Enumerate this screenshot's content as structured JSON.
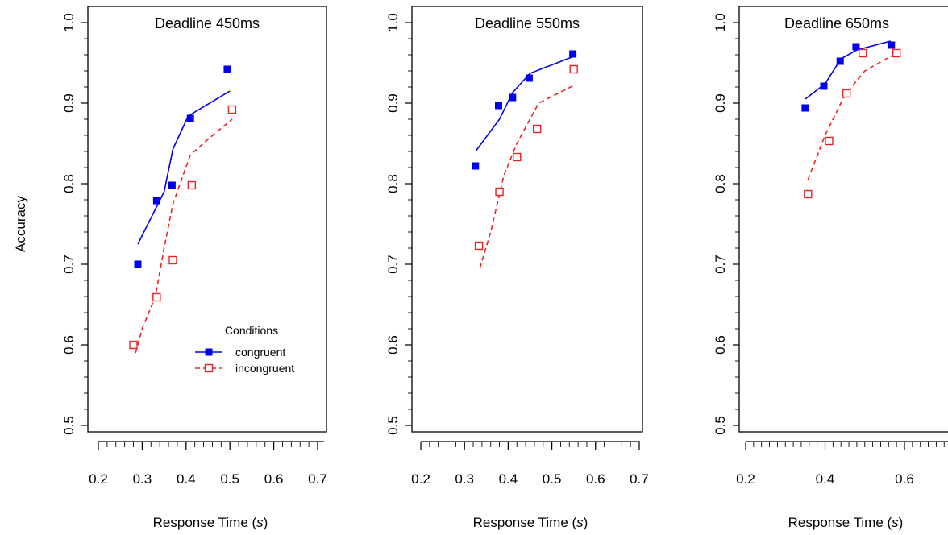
{
  "labels": {
    "ylabel": "Accuracy",
    "xlabel_prefix": "Response Time (",
    "xlabel_var": "s",
    "xlabel_suffix": ")"
  },
  "legend": {
    "title": "Conditions",
    "entries": [
      "congruent",
      "incongruent"
    ]
  },
  "colors": {
    "congruent": "#0000ee",
    "incongruent": "#ee2222"
  },
  "chart_data": [
    {
      "type": "scatter",
      "title": "Deadline 450ms",
      "xlim": [
        0.2,
        0.7
      ],
      "ylim": [
        0.5,
        1.0
      ],
      "xticks": [
        "0.2",
        "0.3",
        "0.4",
        "0.5",
        "0.6",
        "0.7"
      ],
      "yticks": [
        "0.5",
        "0.6",
        "0.7",
        "0.8",
        "0.9",
        "1.0"
      ],
      "series": [
        {
          "name": "congruent",
          "points": [
            [
              0.29,
              0.7
            ],
            [
              0.333,
              0.779
            ],
            [
              0.368,
              0.798
            ],
            [
              0.41,
              0.881
            ],
            [
              0.494,
              0.942
            ]
          ],
          "line": [
            [
              0.29,
              0.725
            ],
            [
              0.35,
              0.79
            ],
            [
              0.37,
              0.843
            ],
            [
              0.405,
              0.884
            ],
            [
              0.5,
              0.915
            ]
          ]
        },
        {
          "name": "incongruent",
          "points": [
            [
              0.28,
              0.6
            ],
            [
              0.333,
              0.659
            ],
            [
              0.37,
              0.705
            ],
            [
              0.413,
              0.798
            ],
            [
              0.505,
              0.892
            ]
          ],
          "line": [
            [
              0.285,
              0.59
            ],
            [
              0.3,
              0.62
            ],
            [
              0.33,
              0.66
            ],
            [
              0.35,
              0.72
            ],
            [
              0.37,
              0.775
            ],
            [
              0.41,
              0.836
            ],
            [
              0.45,
              0.855
            ],
            [
              0.505,
              0.88
            ]
          ]
        }
      ]
    },
    {
      "type": "scatter",
      "title": "Deadline 550ms",
      "xlim": [
        0.2,
        0.7
      ],
      "ylim": [
        0.5,
        1.0
      ],
      "xticks": [
        "0.2",
        "0.3",
        "0.4",
        "0.5",
        "0.6",
        "0.7"
      ],
      "yticks": [
        "0.5",
        "0.6",
        "0.7",
        "0.8",
        "0.9",
        "1.0"
      ],
      "series": [
        {
          "name": "congruent",
          "points": [
            [
              0.325,
              0.822
            ],
            [
              0.378,
              0.897
            ],
            [
              0.41,
              0.907
            ],
            [
              0.448,
              0.931
            ],
            [
              0.548,
              0.961
            ]
          ],
          "line": [
            [
              0.325,
              0.84
            ],
            [
              0.38,
              0.88
            ],
            [
              0.41,
              0.913
            ],
            [
              0.45,
              0.937
            ],
            [
              0.55,
              0.958
            ]
          ]
        },
        {
          "name": "incongruent",
          "points": [
            [
              0.333,
              0.723
            ],
            [
              0.38,
              0.79
            ],
            [
              0.42,
              0.833
            ],
            [
              0.466,
              0.868
            ],
            [
              0.55,
              0.942
            ]
          ],
          "line": [
            [
              0.335,
              0.695
            ],
            [
              0.36,
              0.74
            ],
            [
              0.39,
              0.81
            ],
            [
              0.42,
              0.85
            ],
            [
              0.47,
              0.9
            ],
            [
              0.55,
              0.922
            ]
          ]
        }
      ]
    },
    {
      "type": "scatter",
      "title": "Deadline 650ms",
      "xlim": [
        0.15,
        0.7
      ],
      "ylim": [
        0.5,
        1.0
      ],
      "xticks": [
        "0.2",
        "0.4",
        "0.6"
      ],
      "yticks": [
        "0.5",
        "0.6",
        "0.7",
        "0.8",
        "0.9",
        "1.0"
      ],
      "series": [
        {
          "name": "congruent",
          "points": [
            [
              0.35,
              0.894
            ],
            [
              0.397,
              0.921
            ],
            [
              0.438,
              0.952
            ],
            [
              0.478,
              0.97
            ],
            [
              0.567,
              0.972
            ]
          ],
          "line": [
            [
              0.35,
              0.905
            ],
            [
              0.4,
              0.924
            ],
            [
              0.44,
              0.955
            ],
            [
              0.48,
              0.966
            ],
            [
              0.565,
              0.977
            ]
          ]
        },
        {
          "name": "incongruent",
          "points": [
            [
              0.357,
              0.787
            ],
            [
              0.41,
              0.853
            ],
            [
              0.454,
              0.912
            ],
            [
              0.495,
              0.962
            ],
            [
              0.58,
              0.962
            ]
          ],
          "line": [
            [
              0.357,
              0.805
            ],
            [
              0.4,
              0.86
            ],
            [
              0.45,
              0.91
            ],
            [
              0.5,
              0.94
            ],
            [
              0.58,
              0.962
            ]
          ]
        }
      ]
    }
  ]
}
